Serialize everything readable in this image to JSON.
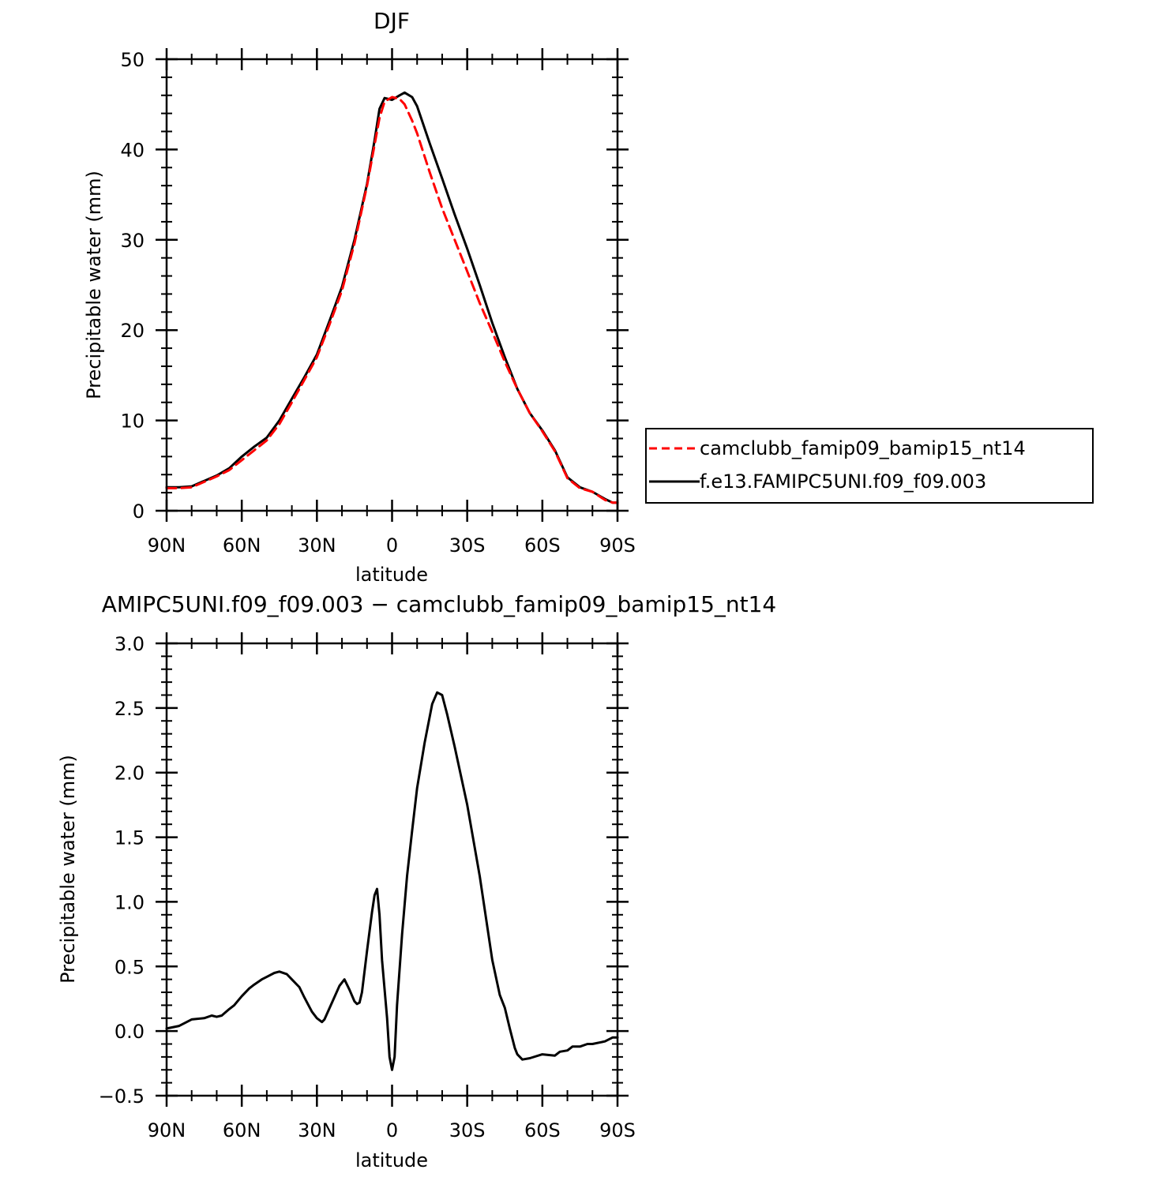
{
  "chart_data": [
    {
      "type": "line",
      "title": "DJF",
      "xlabel": "latitude",
      "ylabel": "Precipitable water (mm)",
      "xlim": [
        -90,
        90
      ],
      "ylim": [
        0,
        50
      ],
      "x_ticks": [
        -90,
        -60,
        -30,
        0,
        30,
        60,
        90
      ],
      "x_tick_labels": [
        "90N",
        "60N",
        "30N",
        "0",
        "30S",
        "60S",
        "90S"
      ],
      "y_ticks": [
        0,
        10,
        20,
        30,
        40,
        50
      ],
      "y_tick_labels": [
        "0",
        "10",
        "20",
        "30",
        "40",
        "50"
      ],
      "legend_position": "right",
      "series": [
        {
          "name": "camclubb_famip09_bamip15_nt14",
          "color": "#ff0000",
          "style": "dashed",
          "x": [
            -90,
            -85,
            -80,
            -75,
            -70,
            -65,
            -60,
            -55,
            -50,
            -45,
            -40,
            -35,
            -30,
            -25,
            -20,
            -15,
            -10,
            -7,
            -5,
            -3,
            0,
            3,
            5,
            8,
            10,
            15,
            20,
            25,
            30,
            35,
            40,
            45,
            50,
            55,
            60,
            65,
            70,
            75,
            80,
            85,
            88,
            90
          ],
          "y": [
            2.5,
            2.5,
            2.6,
            3.2,
            3.8,
            4.5,
            5.6,
            6.7,
            7.8,
            9.6,
            12.0,
            14.5,
            17.0,
            20.6,
            24.4,
            29.6,
            36.0,
            40.5,
            43.5,
            45.3,
            45.8,
            45.6,
            45.0,
            43.2,
            41.8,
            37.5,
            33.5,
            30.0,
            26.5,
            23.0,
            19.8,
            16.5,
            13.5,
            10.8,
            8.8,
            6.6,
            3.6,
            2.5,
            2.1,
            1.2,
            0.9,
            0.9
          ]
        },
        {
          "name": "f.e13.FAMIPC5UNI.f09_f09.003",
          "color": "#000000",
          "style": "solid",
          "x": [
            -90,
            -85,
            -80,
            -75,
            -70,
            -65,
            -60,
            -55,
            -50,
            -45,
            -40,
            -35,
            -30,
            -25,
            -20,
            -15,
            -10,
            -7,
            -5,
            -3,
            0,
            3,
            5,
            8,
            10,
            15,
            20,
            25,
            30,
            35,
            40,
            45,
            50,
            55,
            60,
            65,
            70,
            75,
            80,
            85,
            88,
            90
          ],
          "y": [
            2.6,
            2.6,
            2.7,
            3.3,
            3.9,
            4.7,
            6.0,
            7.1,
            8.1,
            10.0,
            12.4,
            14.8,
            17.3,
            21.0,
            24.8,
            30.0,
            36.2,
            41.0,
            44.5,
            45.7,
            45.5,
            46.0,
            46.3,
            45.8,
            44.8,
            40.7,
            36.8,
            32.8,
            29.0,
            25.0,
            20.8,
            17.0,
            13.5,
            10.8,
            8.9,
            6.7,
            3.7,
            2.6,
            2.1,
            1.3,
            0.9,
            0.9
          ]
        }
      ]
    },
    {
      "type": "line",
      "title": "AMIPC5UNI.f09_f09.003 − camclubb_famip09_bamip15_nt14",
      "xlabel": "latitude",
      "ylabel": "Precipitable water (mm)",
      "xlim": [
        -90,
        90
      ],
      "ylim": [
        -0.5,
        3.0
      ],
      "x_ticks": [
        -90,
        -60,
        -30,
        0,
        30,
        60,
        90
      ],
      "x_tick_labels": [
        "90N",
        "60N",
        "30N",
        "0",
        "30S",
        "60S",
        "90S"
      ],
      "y_ticks": [
        -0.5,
        0.0,
        0.5,
        1.0,
        1.5,
        2.0,
        2.5,
        3.0
      ],
      "y_tick_labels": [
        "−0.5",
        "0.0",
        "0.5",
        "1.0",
        "1.5",
        "2.0",
        "2.5",
        "3.0"
      ],
      "series": [
        {
          "color": "#000000",
          "style": "solid",
          "x": [
            -90,
            -85,
            -80,
            -75,
            -72,
            -70,
            -68,
            -65,
            -63,
            -60,
            -57,
            -55,
            -52,
            -50,
            -47,
            -45,
            -42,
            -40,
            -37,
            -35,
            -32,
            -30,
            -28,
            -27,
            -24,
            -21,
            -19,
            -17,
            -15,
            -14,
            -13,
            -12,
            -10,
            -8,
            -7,
            -6,
            -5,
            -4,
            -2,
            -1,
            0,
            1,
            2,
            4,
            6,
            8,
            10,
            13,
            16,
            18,
            20,
            22,
            25,
            30,
            35,
            40,
            43,
            45,
            47,
            49,
            50,
            52,
            55,
            60,
            65,
            67,
            70,
            72,
            75,
            78,
            80,
            85,
            88,
            90
          ],
          "y": [
            0.02,
            0.04,
            0.09,
            0.1,
            0.12,
            0.11,
            0.12,
            0.17,
            0.2,
            0.27,
            0.33,
            0.36,
            0.4,
            0.42,
            0.45,
            0.46,
            0.44,
            0.4,
            0.34,
            0.26,
            0.15,
            0.1,
            0.07,
            0.09,
            0.22,
            0.35,
            0.4,
            0.32,
            0.23,
            0.21,
            0.22,
            0.3,
            0.62,
            0.92,
            1.05,
            1.1,
            0.9,
            0.55,
            0.1,
            -0.2,
            -0.3,
            -0.2,
            0.2,
            0.75,
            1.2,
            1.55,
            1.88,
            2.23,
            2.53,
            2.62,
            2.6,
            2.45,
            2.2,
            1.75,
            1.2,
            0.55,
            0.28,
            0.18,
            0.02,
            -0.13,
            -0.18,
            -0.22,
            -0.21,
            -0.18,
            -0.19,
            -0.16,
            -0.15,
            -0.12,
            -0.12,
            -0.1,
            -0.1,
            -0.08,
            -0.05,
            -0.05
          ]
        }
      ]
    }
  ]
}
